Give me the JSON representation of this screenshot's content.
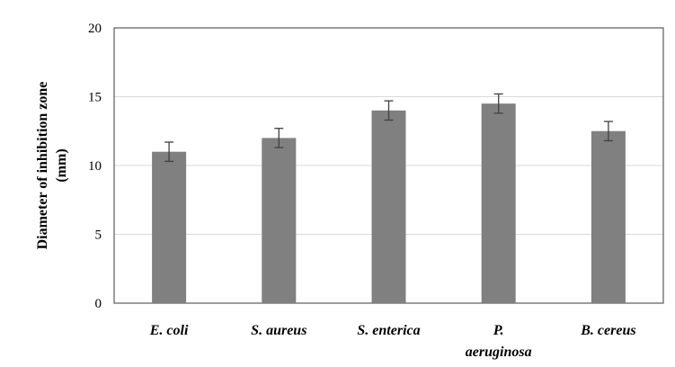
{
  "chart_data": {
    "type": "bar",
    "categories": [
      [
        "E. coli"
      ],
      [
        "S. aureus"
      ],
      [
        "S. enterica"
      ],
      [
        "P.",
        "aeruginosa"
      ],
      [
        "B. cereus"
      ]
    ],
    "values": [
      11.0,
      12.0,
      14.0,
      14.5,
      12.5
    ],
    "error": [
      0.7,
      0.7,
      0.7,
      0.7,
      0.7
    ],
    "ylabel": [
      "Diameter of inhibition  zone",
      "(mm)"
    ],
    "ylim": [
      0,
      20
    ],
    "yticks": [
      0,
      5,
      10,
      15,
      20
    ],
    "grid": true,
    "colors": {
      "bar": "#808080",
      "grid": "#d9d9d9",
      "frame": "#595959",
      "errorbar": "#404040"
    }
  }
}
